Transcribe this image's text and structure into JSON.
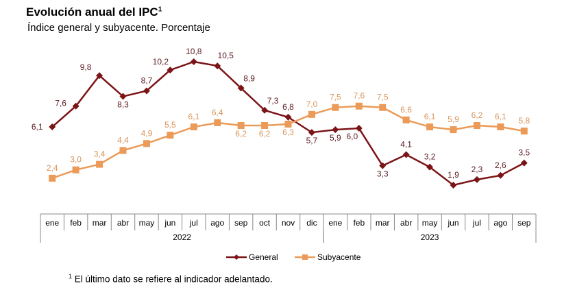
{
  "title": "Evolución anual del IPC",
  "title_superscript": "1",
  "subtitle": "Índice general y subyacente. Porcentaje",
  "footnote_marker": "1",
  "footnote": "El último dato se refiere al indicador adelantado.",
  "chart_data": {
    "type": "line",
    "categories": [
      "ene",
      "feb",
      "mar",
      "abr",
      "may",
      "jun",
      "jul",
      "ago",
      "sep",
      "oct",
      "nov",
      "dic",
      "ene",
      "feb",
      "mar",
      "abr",
      "may",
      "jun",
      "jul",
      "ago",
      "sep"
    ],
    "year_groups": [
      {
        "label": "2022",
        "count": 12
      },
      {
        "label": "2023",
        "count": 9
      }
    ],
    "series": [
      {
        "name": "General",
        "color": "#7b1416",
        "marker": "diamond",
        "values": [
          6.1,
          7.6,
          9.8,
          8.3,
          8.7,
          10.2,
          10.8,
          10.5,
          8.9,
          7.3,
          6.8,
          5.7,
          5.9,
          6.0,
          3.3,
          4.1,
          3.2,
          1.9,
          2.3,
          2.6,
          3.5
        ],
        "labels": [
          "6,1",
          "7,6",
          "9,8",
          "8,3",
          "8,7",
          "10,2",
          "10,8",
          "10,5",
          "8,9",
          "7,3",
          "6,8",
          "5,7",
          "5,9",
          "6,0",
          "3,3",
          "4,1",
          "3,2",
          "1,9",
          "2,3",
          "2,6",
          "3,5"
        ]
      },
      {
        "name": "Subyacente",
        "color": "#eb9a57",
        "marker": "square",
        "values": [
          2.4,
          3.0,
          3.4,
          4.4,
          4.9,
          5.5,
          6.1,
          6.4,
          6.2,
          6.2,
          6.3,
          7.0,
          7.5,
          7.6,
          7.5,
          6.6,
          6.1,
          5.9,
          6.2,
          6.1,
          5.8
        ],
        "labels": [
          "2,4",
          "3,0",
          "3,4",
          "4,4",
          "4,9",
          "5,5",
          "6,1",
          "6,4",
          "6,2",
          "6,2",
          "6,3",
          "7,0",
          "7,5",
          "7,6",
          "7,5",
          "6,6",
          "6,1",
          "5,9",
          "6,2",
          "6,1",
          "5,8"
        ]
      }
    ],
    "legend_position": "bottom",
    "grid": false
  }
}
